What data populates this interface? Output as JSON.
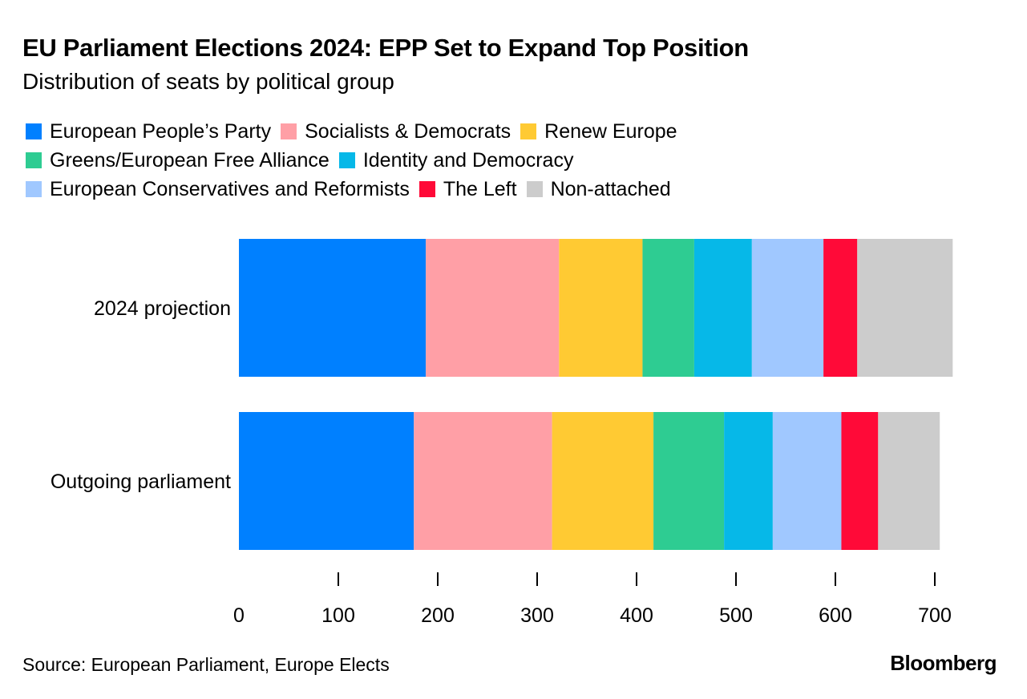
{
  "chart_data": {
    "type": "bar",
    "orientation": "horizontal",
    "stacked": true,
    "title": "EU Parliament Elections 2024: EPP Set to Expand Top Position",
    "subtitle": "Distribution of seats by political group",
    "categories": [
      "2024 projection",
      "Outgoing parliament"
    ],
    "series": [
      {
        "name": "European People’s Party",
        "color": "#0080ff",
        "values": [
          188,
          176
        ]
      },
      {
        "name": "Socialists & Democrats",
        "color": "#ff9fa6",
        "values": [
          134,
          139
        ]
      },
      {
        "name": "Renew Europe",
        "color": "#ffca33",
        "values": [
          84,
          102
        ]
      },
      {
        "name": "Greens/European Free Alliance",
        "color": "#2ecc92",
        "values": [
          52,
          71
        ]
      },
      {
        "name": "Identity and Democracy",
        "color": "#06b8e8",
        "values": [
          58,
          49
        ]
      },
      {
        "name": "European Conservatives and Reformists",
        "color": "#a0c8ff",
        "values": [
          72,
          69
        ]
      },
      {
        "name": "The Left",
        "color": "#ff0a38",
        "values": [
          34,
          37
        ]
      },
      {
        "name": "Non-attached",
        "color": "#cccccc",
        "values": [
          96,
          62
        ]
      }
    ],
    "legend_rows": [
      [
        0,
        1,
        2
      ],
      [
        3,
        4
      ],
      [
        5,
        6,
        7
      ]
    ],
    "xlim": [
      0,
      720
    ],
    "xticks": [
      0,
      100,
      200,
      300,
      400,
      500,
      600,
      700
    ],
    "xlabel": "",
    "ylabel": "",
    "grid": false,
    "legend_position": "top-left"
  },
  "source": "Source: European Parliament, Europe Elects",
  "brand": "Bloomberg"
}
